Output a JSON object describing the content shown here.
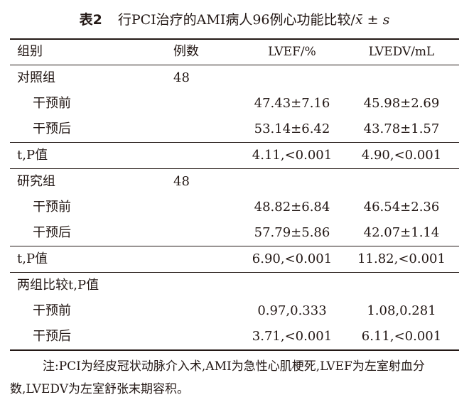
{
  "caption": {
    "number": "表2",
    "title": "行PCI治疗的AMI病人96例心功能比较/",
    "stat_symbol": "x̄ ± s"
  },
  "table": {
    "headers": [
      "组别",
      "例数",
      "LVEF/%",
      "LVEDV/mL"
    ],
    "rows": [
      {
        "group": "对照组",
        "n": "48",
        "lvef": "",
        "lvedv": ""
      },
      {
        "group": "干预前",
        "n": "",
        "lvef": "47.43±7.16",
        "lvedv": "45.98±2.69"
      },
      {
        "group": "干预后",
        "n": "",
        "lvef": "53.14±6.42",
        "lvedv": "43.78±1.57"
      },
      {
        "group": "t,P值",
        "n": "",
        "lvef": "4.11,<0.001",
        "lvedv": "4.90,<0.001"
      },
      {
        "group": "研究组",
        "n": "48",
        "lvef": "",
        "lvedv": ""
      },
      {
        "group": "干预前",
        "n": "",
        "lvef": "48.82±6.84",
        "lvedv": "46.54±2.36"
      },
      {
        "group": "干预后",
        "n": "",
        "lvef": "57.79±5.86",
        "lvedv": "42.07±1.14"
      },
      {
        "group": "t,P值",
        "n": "",
        "lvef": "6.90,<0.001",
        "lvedv": "11.82,<0.001"
      },
      {
        "group": "两组比较t,P值",
        "n": "",
        "lvef": "",
        "lvedv": ""
      },
      {
        "group": "干预前",
        "n": "",
        "lvef": "0.97,0.333",
        "lvedv": "1.08,0.281"
      },
      {
        "group": "干预后",
        "n": "",
        "lvef": "3.71,<0.001",
        "lvedv": "6.11,<0.001"
      }
    ]
  },
  "note": "注:PCI为经皮冠状动脉介入术,AMI为急性心肌梗死,LVEF为左室射血分数,LVEDV为左室舒张末期容积。"
}
